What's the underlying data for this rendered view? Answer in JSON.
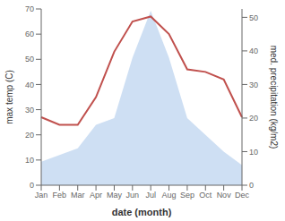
{
  "chart_data": {
    "type": "line",
    "x_label": "date (month)",
    "y_label": "max temp (C)",
    "y2_label": "med. precipitation (kg/m2)",
    "categories": [
      "Jan",
      "Feb",
      "Mar",
      "Apr",
      "May",
      "Jun",
      "Jul",
      "Aug",
      "Sep",
      "Oct",
      "Nov",
      "Dec"
    ],
    "series": [
      {
        "type": "area",
        "axis": "y2",
        "color": "#c5d9f1",
        "values": [
          7,
          9,
          11,
          18,
          20,
          38,
          52,
          38,
          20,
          15,
          10,
          6
        ]
      },
      {
        "type": "line",
        "color": "#c0504d",
        "values": [
          27,
          24,
          24,
          35,
          53,
          65,
          67,
          60,
          46,
          45,
          42,
          27
        ]
      }
    ],
    "ylim": [
      0,
      70
    ],
    "yticks": [
      0,
      10,
      20,
      30,
      40,
      50,
      60,
      70
    ],
    "y2lim": [
      0,
      52.5
    ],
    "y2ticks": [
      0,
      10,
      20,
      30,
      40,
      50
    ],
    "grid": false
  }
}
